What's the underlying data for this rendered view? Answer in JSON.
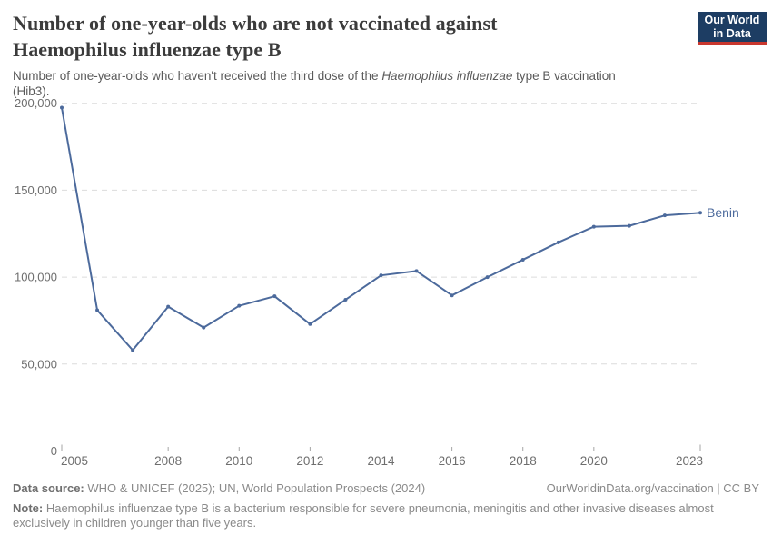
{
  "header": {
    "title_line1": "Number of one-year-olds who are not vaccinated against",
    "title_line2": "Haemophilus influenzae type B",
    "subtitle_prefix": "Number of one-year-olds who haven't received the third dose of the ",
    "subtitle_italic": "Haemophilus influenzae",
    "subtitle_suffix": " type B vaccination (Hib3)."
  },
  "logo": {
    "line1": "Our World",
    "line2": "in Data",
    "bg_color": "#1d3d63",
    "stripe_color": "#c9372e"
  },
  "chart_data": {
    "type": "line",
    "title": "Number of one-year-olds who are not vaccinated against Haemophilus influenzae type B",
    "subtitle": "Number of one-year-olds who haven't received the third dose of the Haemophilus influenzae type B vaccination (Hib3).",
    "x": [
      2005,
      2006,
      2007,
      2008,
      2009,
      2010,
      2011,
      2012,
      2013,
      2014,
      2015,
      2016,
      2017,
      2018,
      2019,
      2020,
      2021,
      2022,
      2023
    ],
    "series": [
      {
        "name": "Benin",
        "color": "#4C6A9C",
        "values": [
          197500,
          81000,
          58000,
          83000,
          71000,
          83500,
          89000,
          73000,
          87000,
          101000,
          103500,
          89500,
          100000,
          110000,
          120000,
          129000,
          129500,
          135500,
          137000
        ]
      }
    ],
    "ylim": [
      0,
      200000
    ],
    "yticks": [
      0,
      50000,
      100000,
      150000,
      200000
    ],
    "ytick_labels": [
      "0",
      "50,000",
      "100,000",
      "150,000",
      "200,000"
    ],
    "xticks": [
      2005,
      2008,
      2010,
      2012,
      2014,
      2016,
      2018,
      2020,
      2023
    ],
    "xtick_labels": [
      "2005",
      "2008",
      "2010",
      "2012",
      "2014",
      "2016",
      "2018",
      "2020",
      "2023"
    ],
    "grid": "horizontal dashed",
    "legend": "end-of-line label",
    "end_label": "Benin"
  },
  "footer": {
    "source_label": "Data source:",
    "source_text": " WHO & UNICEF (2025); UN, World Population Prospects (2024)",
    "license_text": "OurWorldinData.org/vaccination | CC BY",
    "note_label": "Note:",
    "note_text": " Haemophilus influenzae type B is a bacterium responsible for severe pneumonia, meningitis and other invasive diseases almost exclusively in children younger than five years."
  }
}
